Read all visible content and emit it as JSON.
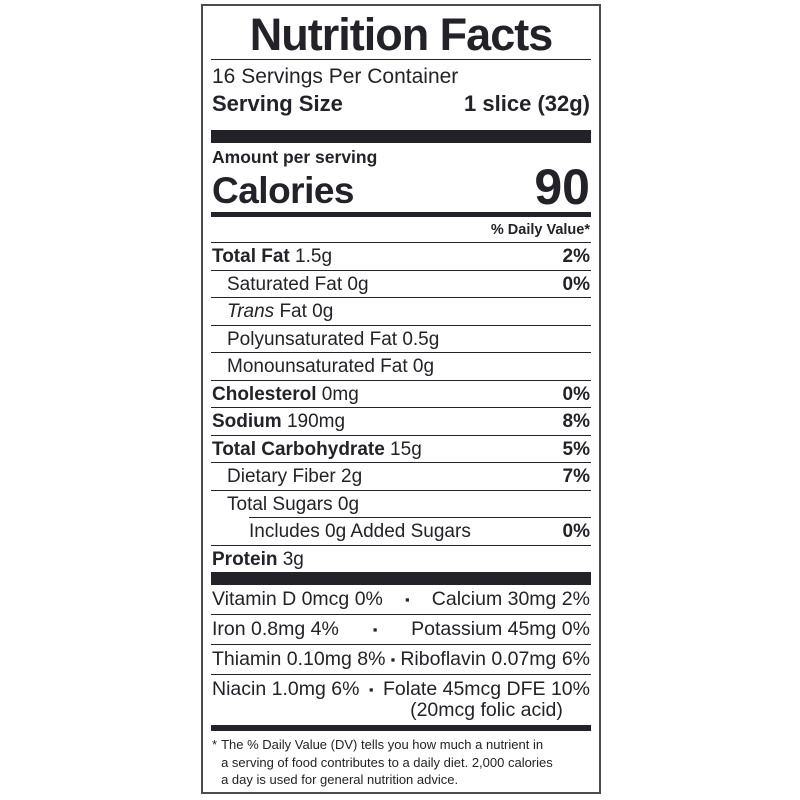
{
  "label": {
    "title": "Nutrition Facts",
    "servings_per_container": "16 Servings Per Container",
    "serving_size": {
      "label": "Serving Size",
      "value": "1 slice (32g)"
    },
    "amount_per_serving": "Amount per serving",
    "calories": {
      "label": "Calories",
      "value": "90"
    },
    "daily_value_header": "% Daily Value*",
    "nutrients": [
      {
        "bold": "Total Fat",
        "italic": "",
        "text": " 1.5g",
        "dv": "2%"
      },
      {
        "bold": "",
        "italic": "",
        "text": "Saturated Fat 0g",
        "dv": "0%"
      },
      {
        "bold": "",
        "italic": "Trans",
        "text": " Fat 0g",
        "dv": ""
      },
      {
        "bold": "",
        "italic": "",
        "text": "Polyunsaturated Fat 0.5g",
        "dv": ""
      },
      {
        "bold": "",
        "italic": "",
        "text": "Monounsaturated Fat 0g",
        "dv": ""
      },
      {
        "bold": "Cholesterol",
        "italic": "",
        "text": " 0mg",
        "dv": "0%"
      },
      {
        "bold": "Sodium",
        "italic": "",
        "text": " 190mg",
        "dv": "8%"
      },
      {
        "bold": "Total Carbohydrate",
        "italic": "",
        "text": " 15g",
        "dv": "5%"
      },
      {
        "bold": "",
        "italic": "",
        "text": "Dietary Fiber 2g",
        "dv": "7%"
      },
      {
        "bold": "",
        "italic": "",
        "text": "Total Sugars 0g",
        "dv": ""
      },
      {
        "bold": "",
        "italic": "",
        "text": "Includes 0g Added Sugars",
        "dv": "0%"
      },
      {
        "bold": "Protein",
        "italic": "",
        "text": " 3g",
        "dv": ""
      }
    ],
    "bullet": "▪",
    "vitamins": [
      {
        "left": "Vitamin D 0mcg 0%",
        "right": "Calcium 30mg 2%",
        "right2": ""
      },
      {
        "left": "Iron 0.8mg 4%",
        "right": "Potassium 45mg 0%",
        "right2": ""
      },
      {
        "left": "Thiamin 0.10mg 8%",
        "right": "Riboflavin 0.07mg 6%",
        "right2": ""
      },
      {
        "left": "Niacin 1.0mg 6%",
        "right": "Folate 45mcg DFE 10%",
        "right2": "(20mcg folic acid)"
      }
    ],
    "footnote": {
      "marker": "*",
      "lines": [
        "The % Daily Value (DV) tells you how much a nutrient in",
        "a serving of food contributes to a daily diet. 2,000 calories",
        "a day is used for general nutrition advice."
      ]
    },
    "colors": {
      "ink": "#222228",
      "bar": "#222228",
      "border": "#4a4a4f"
    }
  }
}
